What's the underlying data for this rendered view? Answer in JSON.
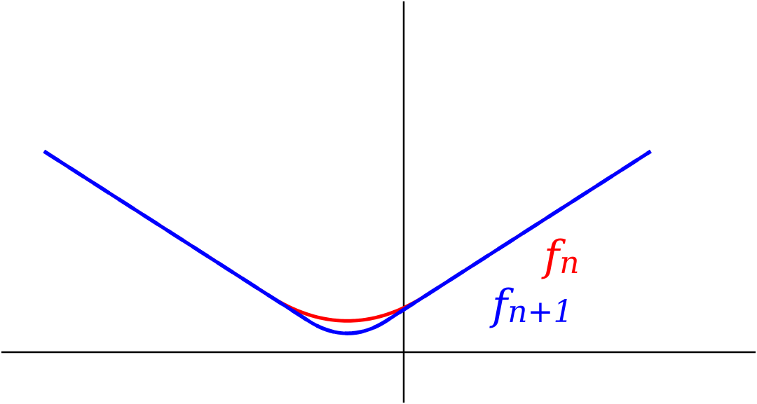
{
  "chart_data": {
    "type": "line",
    "title": "",
    "xlabel": "",
    "ylabel": "",
    "grid": false,
    "legend": "none",
    "xlim": [
      -1.34,
      1.58
    ],
    "ylim": [
      -0.35,
      2.08
    ],
    "series": [
      {
        "name": "f_n",
        "label_base": "f",
        "label_sub": "n",
        "color": "#ff0000",
        "style": "solid",
        "epsilon": 0.3,
        "domain": [
          -1.17,
          1.17
        ]
      },
      {
        "name": "f_{n+1}",
        "label_base": "f",
        "label_sub": "n+1",
        "color": "#0000ff",
        "style": "dashed-over-red",
        "epsilon": 0.15,
        "domain": [
          -1.17,
          1.17
        ]
      }
    ]
  }
}
